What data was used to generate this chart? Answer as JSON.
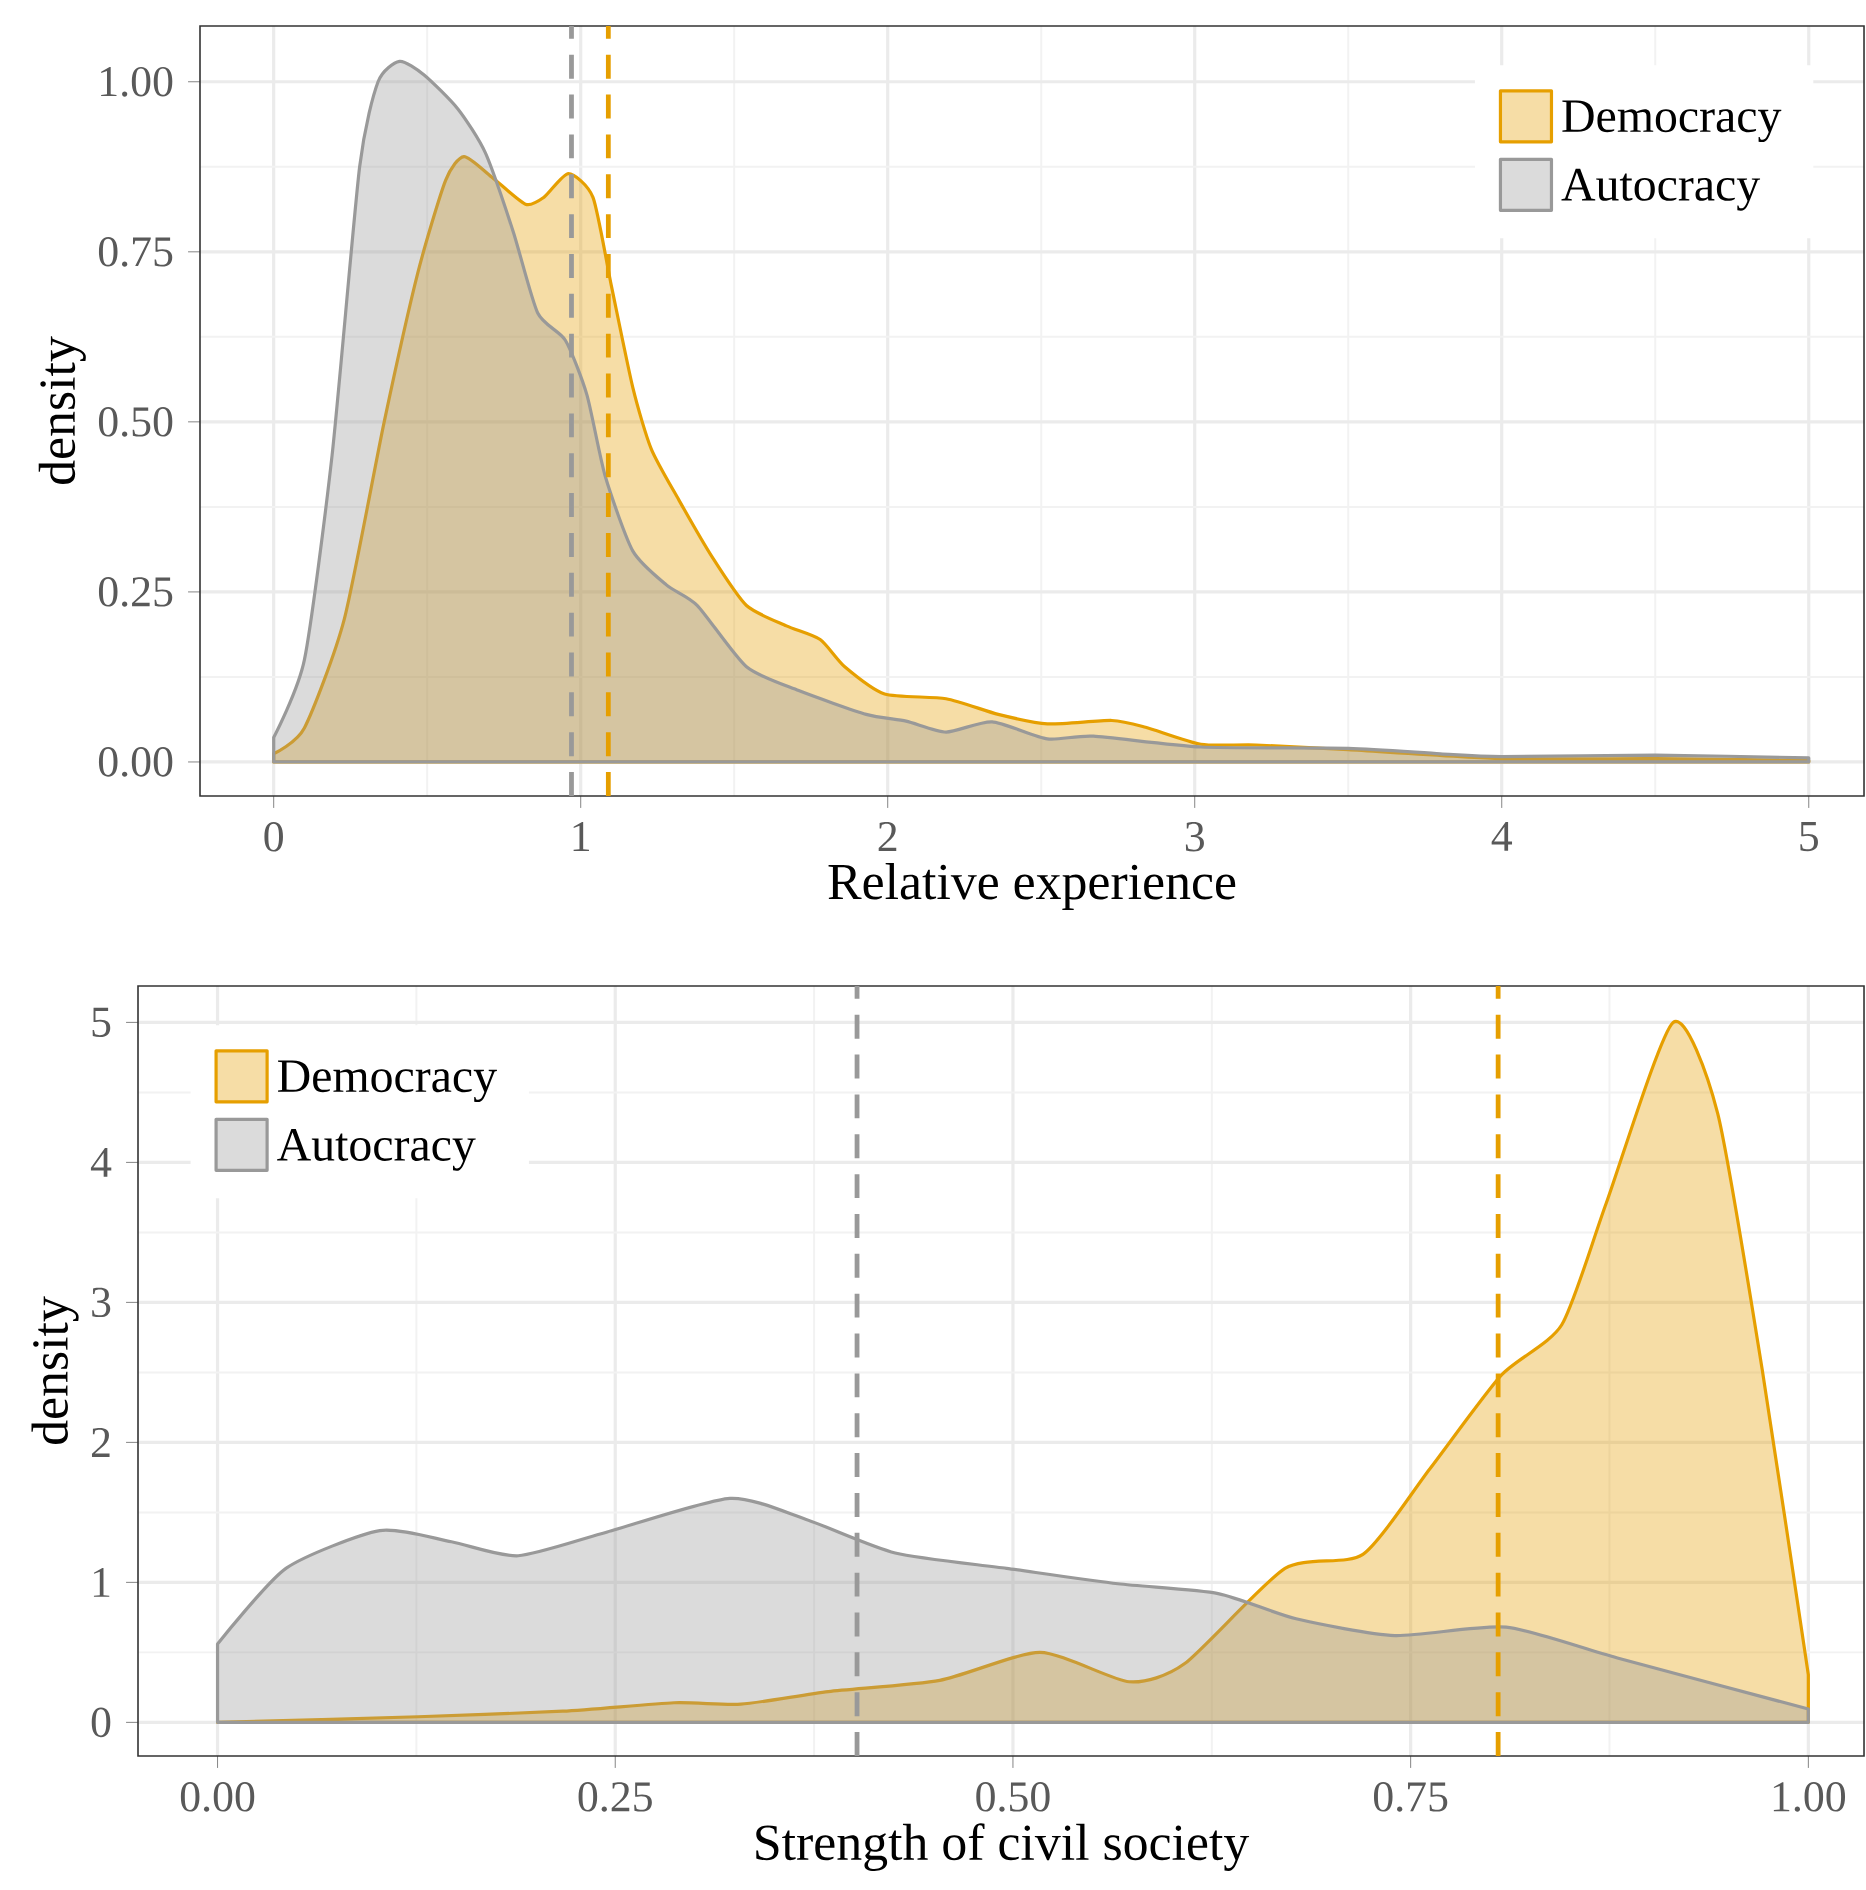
{
  "chart_data": [
    {
      "type": "area",
      "xlabel": "Relative experience",
      "ylabel": "density",
      "xlim": [
        -0.24,
        5.18
      ],
      "ylim": [
        -0.05,
        1.082
      ],
      "xticks": [
        0,
        1,
        2,
        3,
        4,
        5
      ],
      "yticks": [
        {
          "value": 0,
          "label": "0.00"
        },
        {
          "value": 0.25,
          "label": "0.25"
        },
        {
          "value": 0.5,
          "label": "0.50"
        },
        {
          "value": 0.75,
          "label": "0.75"
        },
        {
          "value": 1,
          "label": "1.00"
        }
      ],
      "grid": true,
      "legend": "top right",
      "series": [
        {
          "name": "Democracy",
          "color": "#e69f00",
          "x": [
            0,
            0.1,
            0.23,
            0.36,
            0.47,
            0.56,
            0.62,
            0.71,
            0.82,
            0.88,
            0.96,
            1.04,
            1.1,
            1.17,
            1.23,
            1.32,
            1.43,
            1.54,
            1.67,
            1.78,
            1.86,
            1.99,
            2.19,
            2.36,
            2.52,
            2.73,
            2.84,
            3.02,
            3.2,
            3.5,
            4.0,
            4.5,
            5.0
          ],
          "values": [
            0.012,
            0.05,
            0.21,
            0.5,
            0.72,
            0.855,
            0.89,
            0.86,
            0.82,
            0.83,
            0.865,
            0.83,
            0.7,
            0.55,
            0.46,
            0.385,
            0.3,
            0.23,
            0.2,
            0.18,
            0.14,
            0.1,
            0.093,
            0.07,
            0.056,
            0.061,
            0.051,
            0.026,
            0.025,
            0.018,
            0.005,
            0.005,
            0.002
          ]
        },
        {
          "name": "Autocracy",
          "color": "#999999",
          "x": [
            0,
            0.1,
            0.19,
            0.28,
            0.34,
            0.41,
            0.49,
            0.6,
            0.69,
            0.78,
            0.86,
            0.95,
            1.02,
            1.08,
            1.17,
            1.28,
            1.38,
            1.54,
            1.71,
            1.93,
            2.06,
            2.19,
            2.34,
            2.52,
            2.67,
            3.02,
            3.5,
            3.8,
            4.0,
            4.5,
            5.0
          ],
          "values": [
            0.036,
            0.15,
            0.45,
            0.875,
            1.0,
            1.03,
            1.01,
            0.96,
            0.895,
            0.78,
            0.66,
            0.62,
            0.54,
            0.42,
            0.31,
            0.26,
            0.23,
            0.14,
            0.105,
            0.07,
            0.06,
            0.044,
            0.059,
            0.034,
            0.038,
            0.022,
            0.02,
            0.012,
            0.008,
            0.01,
            0.006
          ]
        }
      ],
      "ref_lines": [
        {
          "axis": "x",
          "value": 0.97,
          "color": "#999999",
          "line_style": "dashed"
        },
        {
          "axis": "x",
          "value": 1.09,
          "color": "#e69f00",
          "line_style": "dashed"
        }
      ]
    },
    {
      "type": "area",
      "xlabel": "Strength of civil society",
      "ylabel": "density",
      "xlim": [
        -0.05,
        1.035
      ],
      "ylim": [
        -0.24,
        5.26
      ],
      "xticks": [
        {
          "value": 0,
          "label": "0.00"
        },
        {
          "value": 0.25,
          "label": "0.25"
        },
        {
          "value": 0.5,
          "label": "0.50"
        },
        {
          "value": 0.75,
          "label": "0.75"
        },
        {
          "value": 1,
          "label": "1.00"
        }
      ],
      "yticks": [
        0,
        1,
        2,
        3,
        4,
        5
      ],
      "grid": true,
      "legend": "top left",
      "series": [
        {
          "name": "Democracy",
          "color": "#e69f00",
          "x": [
            0,
            0.126,
            0.217,
            0.287,
            0.329,
            0.384,
            0.454,
            0.517,
            0.573,
            0.608,
            0.671,
            0.72,
            0.762,
            0.807,
            0.845,
            0.873,
            0.915,
            0.943,
            0.971,
            1.0
          ],
          "values": [
            0,
            0.04,
            0.08,
            0.14,
            0.13,
            0.22,
            0.3,
            0.5,
            0.29,
            0.42,
            1.1,
            1.2,
            1.81,
            2.48,
            2.84,
            3.71,
            5.0,
            4.35,
            2.52,
            0.34
          ]
        },
        {
          "name": "Autocracy",
          "color": "#999999",
          "x": [
            0,
            0.043,
            0.102,
            0.147,
            0.189,
            0.245,
            0.322,
            0.37,
            0.426,
            0.496,
            0.566,
            0.629,
            0.678,
            0.74,
            0.81,
            0.88,
            1.0
          ],
          "values": [
            0.56,
            1.1,
            1.37,
            1.29,
            1.19,
            1.36,
            1.6,
            1.45,
            1.21,
            1.1,
            0.99,
            0.92,
            0.74,
            0.62,
            0.68,
            0.46,
            0.095
          ]
        }
      ],
      "ref_lines": [
        {
          "axis": "x",
          "value": 0.402,
          "color": "#999999",
          "line_style": "dashed"
        },
        {
          "axis": "x",
          "value": 0.805,
          "color": "#e69f00",
          "line_style": "dashed"
        }
      ]
    }
  ]
}
